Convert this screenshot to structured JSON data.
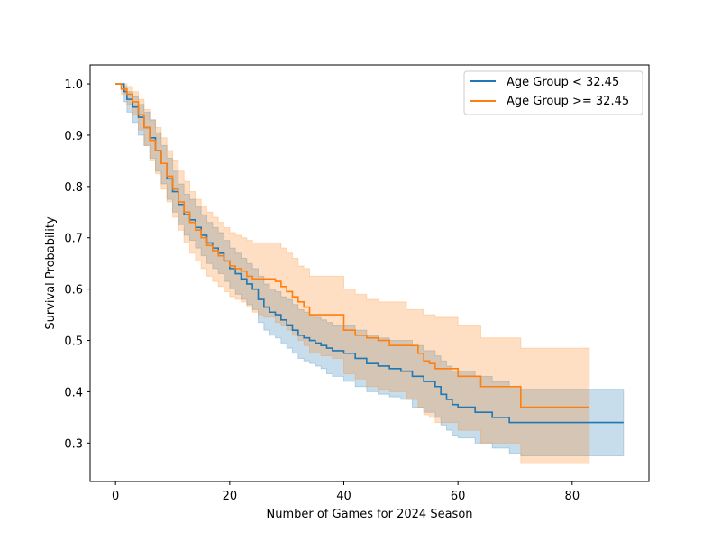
{
  "chart_data": {
    "type": "line",
    "step": "post",
    "title": "",
    "xlabel": "Number of Games for 2024 Season",
    "ylabel": "Survival Probability",
    "xlim": [
      -4.45,
      93.45
    ],
    "ylim": [
      0.225,
      1.037
    ],
    "xticks": [
      0,
      20,
      40,
      60,
      80
    ],
    "xtick_labels": [
      "0",
      "20",
      "40",
      "60",
      "80"
    ],
    "yticks": [
      0.3,
      0.4,
      0.5,
      0.6,
      0.7,
      0.8,
      0.9,
      1.0
    ],
    "ytick_labels": [
      "0.3",
      "0.4",
      "0.5",
      "0.6",
      "0.7",
      "0.8",
      "0.9",
      "1.0"
    ],
    "grid": false,
    "legend_position": "top-right",
    "series": [
      {
        "name": "Age Group < 32.45",
        "color": "#1f77b4",
        "x": [
          0,
          1.5,
          2,
          3,
          4,
          5,
          6,
          7,
          8,
          9,
          10,
          11,
          12,
          13,
          14,
          15,
          16,
          17,
          18,
          19,
          20,
          21,
          22,
          23,
          24,
          25,
          26,
          27,
          28,
          29,
          30,
          31,
          32,
          33,
          34,
          35,
          36,
          37,
          38,
          40,
          42,
          44,
          46,
          48,
          50,
          52,
          54,
          56,
          57,
          58,
          59,
          60,
          63,
          66,
          69,
          71,
          89
        ],
        "y": [
          1.0,
          0.985,
          0.97,
          0.955,
          0.935,
          0.915,
          0.895,
          0.87,
          0.845,
          0.815,
          0.79,
          0.765,
          0.745,
          0.735,
          0.72,
          0.705,
          0.69,
          0.68,
          0.67,
          0.655,
          0.64,
          0.63,
          0.62,
          0.61,
          0.6,
          0.58,
          0.565,
          0.555,
          0.55,
          0.54,
          0.53,
          0.52,
          0.51,
          0.505,
          0.5,
          0.495,
          0.49,
          0.485,
          0.48,
          0.475,
          0.465,
          0.455,
          0.45,
          0.445,
          0.44,
          0.43,
          0.42,
          0.41,
          0.395,
          0.385,
          0.375,
          0.37,
          0.36,
          0.35,
          0.34,
          0.34,
          0.34
        ],
        "ci_upper": [
          1.0,
          0.995,
          0.985,
          0.975,
          0.96,
          0.945,
          0.93,
          0.905,
          0.88,
          0.855,
          0.83,
          0.805,
          0.785,
          0.775,
          0.76,
          0.745,
          0.73,
          0.72,
          0.71,
          0.695,
          0.68,
          0.67,
          0.66,
          0.65,
          0.64,
          0.625,
          0.61,
          0.6,
          0.595,
          0.585,
          0.58,
          0.57,
          0.56,
          0.555,
          0.55,
          0.545,
          0.54,
          0.535,
          0.53,
          0.53,
          0.52,
          0.51,
          0.505,
          0.5,
          0.5,
          0.49,
          0.48,
          0.47,
          0.46,
          0.45,
          0.44,
          0.44,
          0.43,
          0.42,
          0.41,
          0.405,
          0.405
        ],
        "ci_lower": [
          1.0,
          0.965,
          0.945,
          0.925,
          0.9,
          0.88,
          0.855,
          0.83,
          0.805,
          0.775,
          0.75,
          0.725,
          0.705,
          0.695,
          0.68,
          0.665,
          0.65,
          0.64,
          0.63,
          0.615,
          0.6,
          0.59,
          0.58,
          0.57,
          0.56,
          0.535,
          0.52,
          0.51,
          0.505,
          0.495,
          0.485,
          0.475,
          0.465,
          0.46,
          0.455,
          0.45,
          0.445,
          0.435,
          0.43,
          0.42,
          0.41,
          0.4,
          0.395,
          0.39,
          0.385,
          0.37,
          0.36,
          0.35,
          0.335,
          0.325,
          0.315,
          0.31,
          0.3,
          0.29,
          0.28,
          0.275,
          0.275
        ]
      },
      {
        "name": "Age Group >= 32.45",
        "color": "#ff7f0e",
        "x": [
          0,
          1,
          2,
          3,
          4,
          5,
          6,
          7,
          8,
          9,
          10,
          11,
          12,
          13,
          14,
          15,
          16,
          17,
          18,
          19,
          20,
          21,
          22,
          23,
          24,
          25,
          26,
          28,
          29,
          30,
          31,
          32,
          33,
          34,
          36,
          38,
          40,
          42,
          44,
          46,
          48,
          51,
          53,
          54,
          55,
          56,
          60,
          64,
          71,
          83
        ],
        "y": [
          1.0,
          0.99,
          0.98,
          0.965,
          0.94,
          0.915,
          0.89,
          0.87,
          0.845,
          0.82,
          0.795,
          0.77,
          0.75,
          0.73,
          0.715,
          0.7,
          0.685,
          0.675,
          0.665,
          0.655,
          0.645,
          0.64,
          0.635,
          0.625,
          0.62,
          0.62,
          0.62,
          0.615,
          0.605,
          0.595,
          0.585,
          0.575,
          0.565,
          0.55,
          0.55,
          0.55,
          0.52,
          0.51,
          0.505,
          0.5,
          0.49,
          0.49,
          0.475,
          0.46,
          0.455,
          0.445,
          0.43,
          0.41,
          0.37,
          0.37
        ],
        "ci_upper": [
          1.0,
          1.0,
          0.995,
          0.985,
          0.97,
          0.95,
          0.93,
          0.915,
          0.895,
          0.87,
          0.85,
          0.83,
          0.81,
          0.79,
          0.775,
          0.76,
          0.75,
          0.74,
          0.73,
          0.72,
          0.71,
          0.705,
          0.7,
          0.695,
          0.69,
          0.69,
          0.69,
          0.69,
          0.68,
          0.67,
          0.66,
          0.645,
          0.64,
          0.625,
          0.625,
          0.625,
          0.6,
          0.59,
          0.58,
          0.575,
          0.575,
          0.56,
          0.56,
          0.55,
          0.55,
          0.545,
          0.53,
          0.505,
          0.485,
          0.485
        ],
        "ci_lower": [
          1.0,
          0.98,
          0.96,
          0.94,
          0.91,
          0.88,
          0.85,
          0.825,
          0.795,
          0.77,
          0.74,
          0.715,
          0.69,
          0.67,
          0.655,
          0.64,
          0.625,
          0.615,
          0.605,
          0.595,
          0.585,
          0.58,
          0.575,
          0.565,
          0.555,
          0.55,
          0.545,
          0.535,
          0.53,
          0.52,
          0.51,
          0.5,
          0.49,
          0.475,
          0.47,
          0.465,
          0.435,
          0.425,
          0.41,
          0.405,
          0.4,
          0.385,
          0.37,
          0.355,
          0.35,
          0.34,
          0.325,
          0.3,
          0.26,
          0.26
        ]
      }
    ]
  }
}
